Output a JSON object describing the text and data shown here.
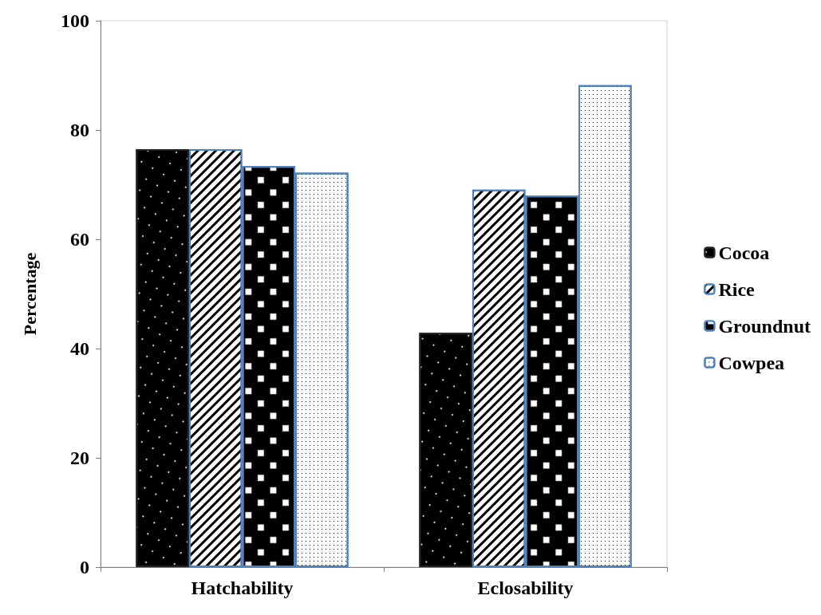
{
  "chart_data": {
    "type": "bar",
    "ylabel": "Percentage",
    "categories": [
      "Hatchability",
      "Eclosability"
    ],
    "series": [
      {
        "name": "Cocoa",
        "color": "#000000",
        "values": [
          76.5,
          42.9
        ]
      },
      {
        "name": "Rice",
        "color": "#ffffff",
        "values": [
          76.5,
          69.1
        ]
      },
      {
        "name": "Groundnut",
        "color": "#000000",
        "values": [
          73.4,
          68.0
        ]
      },
      {
        "name": "Cowpea",
        "color": "#ffffff",
        "values": [
          72.2,
          88.2
        ]
      }
    ],
    "ylim": [
      0,
      100
    ],
    "yticks": [
      0,
      20,
      40,
      60,
      80,
      100
    ],
    "grid": false,
    "legend": "right"
  }
}
